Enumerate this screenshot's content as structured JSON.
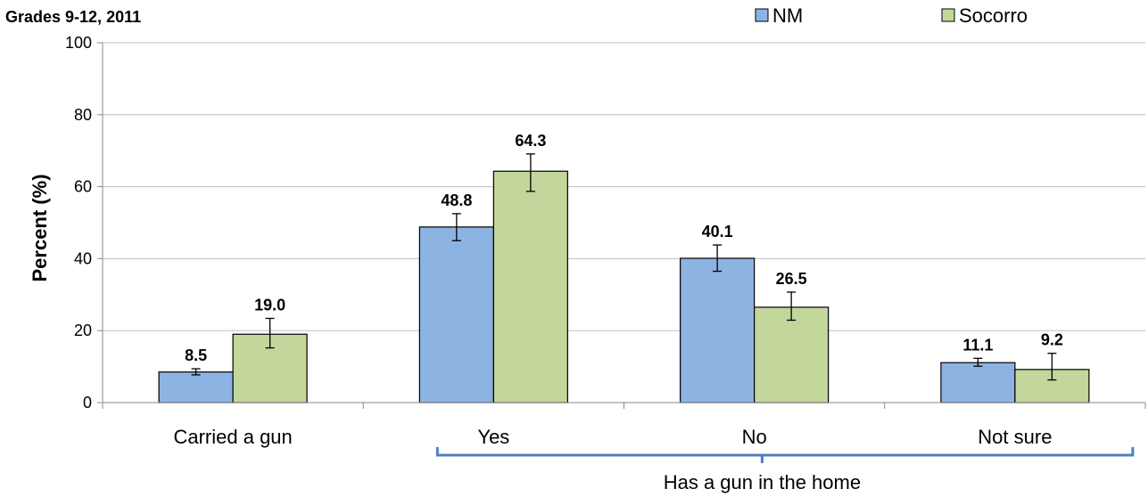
{
  "chart_data": {
    "type": "bar",
    "title": "",
    "subtitle": "Grades 9-12, 2011",
    "xlabel": "",
    "ylabel": "Percent (%)",
    "ylim": [
      0,
      100
    ],
    "yticks": [
      0,
      20,
      40,
      60,
      80,
      100
    ],
    "grid": true,
    "legend_position": "top-right",
    "categories": [
      "Carried a gun",
      "Yes",
      "No",
      "Not sure"
    ],
    "category_group": {
      "label": "Has a gun in the home",
      "members": [
        "Yes",
        "No",
        "Not sure"
      ]
    },
    "series": [
      {
        "name": "NM",
        "color": "#8DB3E2",
        "values": [
          8.5,
          48.8,
          40.1,
          11.1
        ],
        "ci_low": [
          7.7,
          45.0,
          36.5,
          10.1
        ],
        "ci_high": [
          9.4,
          52.5,
          43.8,
          12.3
        ]
      },
      {
        "name": "Socorro",
        "color": "#C3D69B",
        "values": [
          19.0,
          64.3,
          26.5,
          9.2
        ],
        "ci_low": [
          15.2,
          58.7,
          22.9,
          6.3
        ],
        "ci_high": [
          23.4,
          69.1,
          30.7,
          13.7
        ]
      }
    ],
    "bracket_color": "#4F81BD"
  }
}
